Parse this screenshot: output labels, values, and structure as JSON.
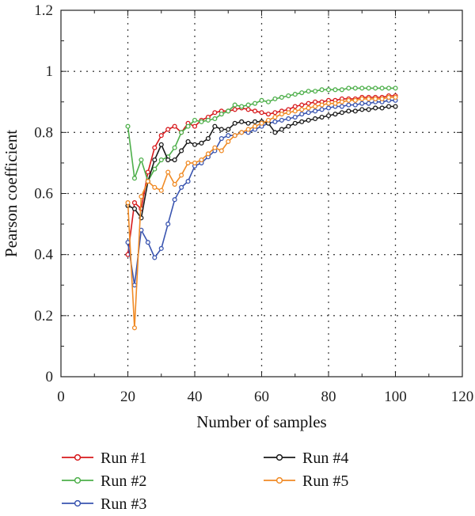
{
  "chart_data": {
    "type": "line",
    "xlabel": "Number of samples",
    "ylabel": "Pearson coefficient",
    "xlim": [
      0,
      120
    ],
    "ylim": [
      0,
      1.2
    ],
    "x_ticks": [
      0,
      20,
      40,
      60,
      80,
      100,
      120
    ],
    "y_ticks": [
      0,
      0.2,
      0.4,
      0.6,
      0.8,
      1,
      1.2
    ],
    "x_tick_labels": [
      "0",
      "20",
      "40",
      "60",
      "80",
      "100",
      "120"
    ],
    "y_tick_labels": [
      "0",
      "0.2",
      "0.4",
      "0.6",
      "0.8",
      "1",
      "1.2"
    ],
    "grid": "dotted",
    "legend_position": "bottom",
    "x": [
      20,
      22,
      24,
      26,
      28,
      30,
      32,
      34,
      36,
      38,
      40,
      42,
      44,
      46,
      48,
      50,
      52,
      54,
      56,
      58,
      60,
      62,
      64,
      66,
      68,
      70,
      72,
      74,
      76,
      78,
      80,
      82,
      84,
      86,
      88,
      90,
      92,
      94,
      96,
      98,
      100
    ],
    "series": [
      {
        "name": "Run #1",
        "color": "#d7191c",
        "values": [
          0.4,
          0.57,
          0.55,
          0.67,
          0.75,
          0.79,
          0.81,
          0.82,
          0.8,
          0.83,
          0.82,
          0.84,
          0.85,
          0.865,
          0.87,
          0.87,
          0.875,
          0.88,
          0.875,
          0.87,
          0.865,
          0.86,
          0.865,
          0.87,
          0.875,
          0.885,
          0.89,
          0.895,
          0.9,
          0.9,
          0.905,
          0.905,
          0.91,
          0.91,
          0.91,
          0.915,
          0.915,
          0.915,
          0.915,
          0.92,
          0.92
        ]
      },
      {
        "name": "Run #2",
        "color": "#4daf4a",
        "values": [
          0.82,
          0.65,
          0.71,
          0.64,
          0.68,
          0.71,
          0.72,
          0.75,
          0.8,
          0.82,
          0.84,
          0.835,
          0.84,
          0.845,
          0.86,
          0.87,
          0.89,
          0.885,
          0.89,
          0.895,
          0.905,
          0.9,
          0.91,
          0.915,
          0.92,
          0.925,
          0.93,
          0.935,
          0.935,
          0.94,
          0.94,
          0.94,
          0.94,
          0.945,
          0.945,
          0.945,
          0.945,
          0.945,
          0.945,
          0.945,
          0.945
        ]
      },
      {
        "name": "Run #3",
        "color": "#3a55b0",
        "values": [
          0.44,
          0.3,
          0.48,
          0.44,
          0.39,
          0.42,
          0.5,
          0.58,
          0.62,
          0.64,
          0.69,
          0.7,
          0.72,
          0.74,
          0.78,
          0.79,
          0.79,
          0.8,
          0.8,
          0.81,
          0.82,
          0.83,
          0.835,
          0.84,
          0.845,
          0.85,
          0.86,
          0.865,
          0.87,
          0.875,
          0.88,
          0.885,
          0.885,
          0.89,
          0.89,
          0.895,
          0.895,
          0.9,
          0.9,
          0.905,
          0.905
        ]
      },
      {
        "name": "Run #4",
        "color": "#1a1a1a",
        "values": [
          0.56,
          0.55,
          0.52,
          0.64,
          0.71,
          0.76,
          0.71,
          0.71,
          0.74,
          0.77,
          0.76,
          0.765,
          0.78,
          0.82,
          0.81,
          0.81,
          0.83,
          0.835,
          0.83,
          0.835,
          0.835,
          0.83,
          0.8,
          0.81,
          0.82,
          0.83,
          0.835,
          0.84,
          0.845,
          0.85,
          0.855,
          0.86,
          0.865,
          0.87,
          0.87,
          0.875,
          0.875,
          0.88,
          0.88,
          0.885,
          0.885
        ]
      },
      {
        "name": "Run #5",
        "color": "#f08a24",
        "values": [
          0.57,
          0.16,
          0.59,
          0.64,
          0.62,
          0.61,
          0.67,
          0.63,
          0.66,
          0.7,
          0.7,
          0.71,
          0.73,
          0.75,
          0.74,
          0.77,
          0.79,
          0.8,
          0.81,
          0.82,
          0.83,
          0.84,
          0.85,
          0.86,
          0.865,
          0.87,
          0.875,
          0.88,
          0.885,
          0.89,
          0.895,
          0.895,
          0.9,
          0.905,
          0.905,
          0.91,
          0.91,
          0.91,
          0.91,
          0.915,
          0.915
        ]
      }
    ]
  }
}
